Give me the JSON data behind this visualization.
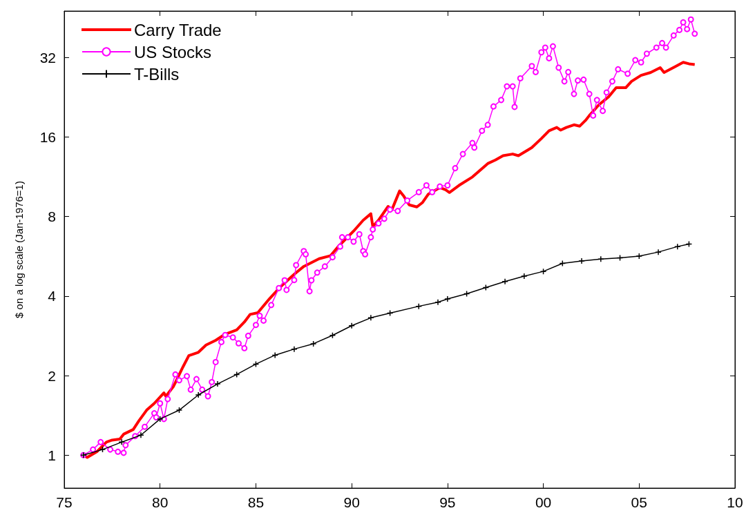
{
  "chart_data": {
    "type": "line",
    "ylabel": "$ on a log scale (Jan-1976=1)",
    "log": "y",
    "grid": false,
    "legend": "top left",
    "xlim": [
      1975,
      2010
    ],
    "xticks": [
      {
        "value": 1975,
        "label": "75"
      },
      {
        "value": 1980,
        "label": "80"
      },
      {
        "value": 1985,
        "label": "85"
      },
      {
        "value": 1990,
        "label": "90"
      },
      {
        "value": 1995,
        "label": "95"
      },
      {
        "value": 2000,
        "label": "00"
      },
      {
        "value": 2005,
        "label": "05"
      },
      {
        "value": 2010,
        "label": "10"
      }
    ],
    "ylim": [
      0.75,
      48
    ],
    "yticks": [
      1,
      2,
      4,
      8,
      16,
      32
    ],
    "series": [
      {
        "name": "Carry Trade",
        "color": "#ff0000",
        "marker": "none",
        "x": [
          1976.0,
          1976.2,
          1976.7,
          1977.2,
          1977.5,
          1977.9,
          1978.1,
          1978.6,
          1978.9,
          1979.3,
          1979.7,
          1980.2,
          1980.3,
          1980.7,
          1981.2,
          1981.5,
          1982.0,
          1982.4,
          1982.9,
          1983.4,
          1984.0,
          1984.4,
          1984.7,
          1985.1,
          1985.7,
          1986.3,
          1987.0,
          1987.5,
          1988.3,
          1988.9,
          1989.3,
          1990.1,
          1990.6,
          1991.0,
          1991.1,
          1991.4,
          1991.9,
          1992.1,
          1992.5,
          1992.7,
          1993.0,
          1993.4,
          1993.7,
          1994.0,
          1994.6,
          1994.9,
          1995.1,
          1995.6,
          1996.3,
          1997.1,
          1997.5,
          1997.9,
          1998.4,
          1998.7,
          1999.4,
          1999.9,
          2000.3,
          2000.7,
          2000.9,
          2001.2,
          2001.6,
          2001.9,
          2002.2,
          2002.4,
          2002.9,
          2003.4,
          2003.8,
          2004.3,
          2004.6,
          2005.1,
          2005.6,
          2006.1,
          2006.3,
          2006.9,
          2007.3,
          2007.6,
          2007.9
        ],
        "values": [
          1.0,
          0.98,
          1.03,
          1.12,
          1.14,
          1.15,
          1.2,
          1.25,
          1.35,
          1.48,
          1.57,
          1.72,
          1.67,
          1.82,
          2.16,
          2.38,
          2.45,
          2.61,
          2.72,
          2.87,
          2.98,
          3.19,
          3.41,
          3.46,
          3.9,
          4.35,
          4.84,
          5.18,
          5.54,
          5.69,
          6.16,
          7.05,
          7.75,
          8.2,
          7.34,
          7.75,
          8.74,
          8.5,
          10.0,
          9.6,
          8.86,
          8.7,
          9.05,
          9.73,
          10.3,
          10.1,
          9.87,
          10.5,
          11.3,
          12.7,
          13.1,
          13.6,
          13.8,
          13.6,
          14.6,
          15.8,
          16.9,
          17.4,
          17.0,
          17.4,
          17.8,
          17.6,
          18.5,
          19.3,
          21.2,
          22.7,
          24.6,
          24.6,
          26.0,
          27.4,
          28.1,
          29.3,
          28.1,
          29.6,
          30.7,
          30.3,
          30.1
        ]
      },
      {
        "name": "US Stocks",
        "color": "#ff00ff",
        "marker": "circle",
        "x": [
          1976.0,
          1976.5,
          1976.9,
          1977.4,
          1977.8,
          1978.1,
          1978.2,
          1978.7,
          1979.2,
          1979.7,
          1979.8,
          1980.0,
          1980.2,
          1980.4,
          1980.8,
          1981.0,
          1981.4,
          1981.6,
          1981.9,
          1982.2,
          1982.5,
          1982.7,
          1982.9,
          1983.2,
          1983.4,
          1983.8,
          1984.1,
          1984.4,
          1984.6,
          1985.0,
          1985.2,
          1985.4,
          1985.8,
          1986.2,
          1986.5,
          1986.6,
          1987.0,
          1987.1,
          1987.5,
          1987.6,
          1987.8,
          1987.9,
          1988.2,
          1988.6,
          1989.0,
          1989.4,
          1989.5,
          1989.8,
          1990.1,
          1990.4,
          1990.6,
          1990.7,
          1991.0,
          1991.1,
          1991.4,
          1991.7,
          1992.0,
          1992.4,
          1992.9,
          1993.5,
          1993.9,
          1994.2,
          1994.6,
          1995.0,
          1995.4,
          1995.8,
          1996.3,
          1996.4,
          1996.8,
          1997.1,
          1997.4,
          1997.8,
          1998.1,
          1998.4,
          1998.5,
          1998.8,
          1999.4,
          1999.6,
          1999.9,
          2000.1,
          2000.3,
          2000.5,
          2000.8,
          2001.1,
          2001.3,
          2001.6,
          2001.8,
          2002.1,
          2002.4,
          2002.6,
          2002.8,
          2003.1,
          2003.3,
          2003.6,
          2003.9,
          2004.4,
          2004.8,
          2005.1,
          2005.4,
          2005.9,
          2006.2,
          2006.4,
          2006.8,
          2007.1,
          2007.3,
          2007.5,
          2007.7,
          2007.9
        ],
        "values": [
          1.0,
          1.05,
          1.12,
          1.05,
          1.03,
          1.02,
          1.09,
          1.18,
          1.28,
          1.44,
          1.39,
          1.57,
          1.37,
          1.63,
          2.02,
          1.92,
          1.99,
          1.77,
          1.94,
          1.77,
          1.67,
          1.89,
          2.25,
          2.68,
          2.85,
          2.79,
          2.65,
          2.54,
          2.83,
          3.11,
          3.37,
          3.23,
          3.7,
          4.29,
          4.59,
          4.22,
          4.6,
          5.24,
          5.92,
          5.76,
          4.17,
          4.59,
          4.91,
          5.18,
          5.61,
          6.16,
          6.68,
          6.68,
          6.43,
          6.86,
          5.92,
          5.76,
          6.68,
          7.15,
          7.54,
          7.85,
          8.5,
          8.4,
          9.2,
          9.9,
          10.5,
          9.9,
          10.4,
          10.5,
          12.2,
          13.8,
          15.2,
          14.6,
          16.9,
          17.8,
          20.9,
          22.1,
          24.9,
          24.9,
          20.8,
          26.7,
          29.7,
          28.2,
          33.5,
          34.9,
          31.8,
          35.3,
          29.3,
          26.0,
          28.2,
          23.3,
          26.2,
          26.4,
          23.3,
          19.3,
          22.1,
          20.1,
          23.6,
          26.0,
          28.9,
          27.8,
          31.3,
          30.7,
          33.1,
          34.9,
          36.3,
          34.9,
          38.8,
          40.7,
          43.5,
          41.0,
          44.6,
          39.4
        ]
      },
      {
        "name": "T-Bills",
        "color": "#000000",
        "marker": "cross",
        "x": [
          1976,
          1977,
          1978,
          1979,
          1980,
          1981,
          1982,
          1983,
          1984,
          1985,
          1986,
          1987,
          1988,
          1989,
          1990,
          1991,
          1992,
          1993.5,
          1994.5,
          1995,
          1996,
          1997,
          1998,
          1999,
          2000,
          2001,
          2002,
          2003,
          2004,
          2005,
          2006,
          2007,
          2007.6
        ],
        "values": [
          1.0,
          1.05,
          1.12,
          1.19,
          1.37,
          1.48,
          1.69,
          1.86,
          2.02,
          2.21,
          2.39,
          2.52,
          2.64,
          2.84,
          3.09,
          3.31,
          3.45,
          3.66,
          3.79,
          3.9,
          4.08,
          4.31,
          4.54,
          4.76,
          4.96,
          5.32,
          5.43,
          5.52,
          5.58,
          5.67,
          5.87,
          6.16,
          6.3
        ]
      }
    ]
  }
}
